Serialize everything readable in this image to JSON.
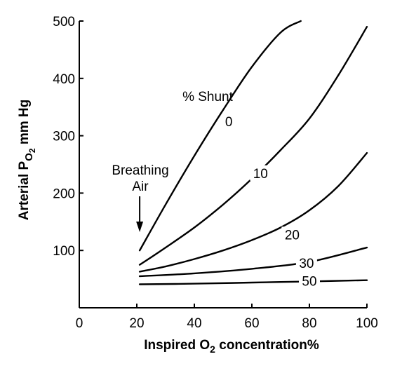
{
  "chart_data": {
    "type": "line",
    "xlabel": {
      "main": "Inspired O",
      "sub": "2",
      "rest": " concentration%"
    },
    "ylabel": {
      "main": "Arterial P",
      "sub": "O",
      "subsub": "2",
      "rest": " mm Hg"
    },
    "xlim": [
      0,
      100
    ],
    "ylim": [
      0,
      500
    ],
    "x_ticks": [
      0,
      20,
      40,
      60,
      80,
      100
    ],
    "y_ticks": [
      100,
      200,
      300,
      400,
      500
    ],
    "x_tick_labels": [
      "0",
      "20",
      "40",
      "60",
      "80",
      "100"
    ],
    "y_tick_labels": [
      "100",
      "200",
      "300",
      "400",
      "500"
    ],
    "grid": false,
    "legend_title": "% Shunt",
    "annotation": {
      "lines": [
        "Breathing",
        "Air"
      ],
      "arrow_x": 21
    },
    "series": [
      {
        "name": "0",
        "x": [
          21,
          30,
          40,
          50,
          60,
          70,
          77
        ],
        "y": [
          100,
          180,
          265,
          345,
          420,
          480,
          500
        ]
      },
      {
        "name": "10",
        "x": [
          21,
          30,
          40,
          50,
          60,
          70,
          80,
          90,
          100
        ],
        "y": [
          75,
          105,
          140,
          180,
          225,
          275,
          330,
          405,
          490
        ]
      },
      {
        "name": "20",
        "x": [
          21,
          30,
          40,
          50,
          60,
          70,
          80,
          90,
          100
        ],
        "y": [
          63,
          72,
          85,
          100,
          118,
          140,
          170,
          212,
          270
        ]
      },
      {
        "name": "30",
        "x": [
          21,
          40,
          60,
          80,
          100
        ],
        "y": [
          55,
          60,
          68,
          80,
          105
        ]
      },
      {
        "name": "50",
        "x": [
          21,
          40,
          60,
          80,
          100
        ],
        "y": [
          41,
          42,
          44,
          46,
          48
        ]
      }
    ]
  }
}
